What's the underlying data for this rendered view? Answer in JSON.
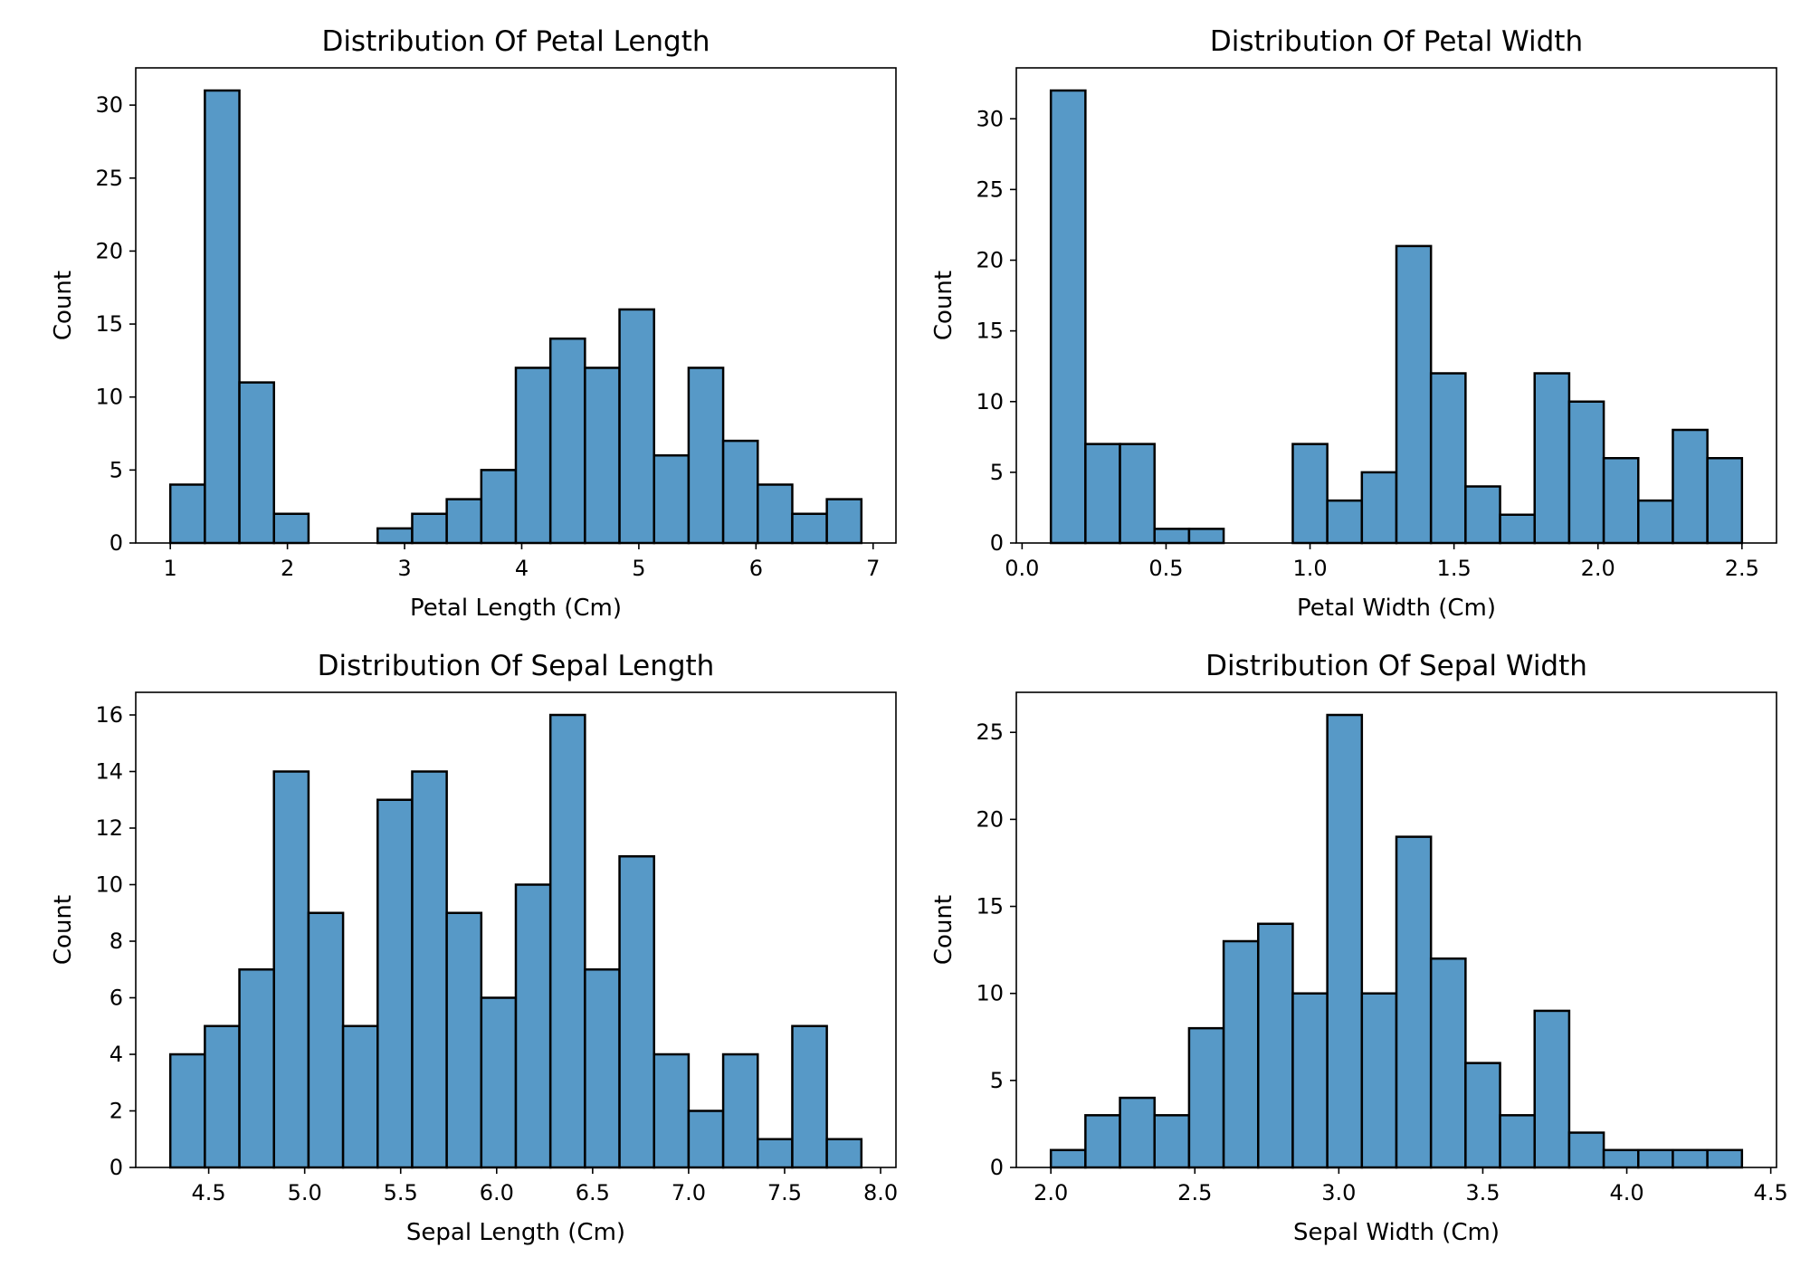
{
  "chart_data": [
    {
      "type": "bar",
      "title": "Distribution Of Petal Length",
      "xlabel": "Petal Length (Cm)",
      "ylabel": "Count",
      "bar_color": "#5799c7",
      "edge_color": "#000000",
      "xlim": [
        0.705,
        7.195
      ],
      "ylim": [
        0,
        32.55
      ],
      "xticks": [
        1,
        2,
        3,
        4,
        5,
        6,
        7
      ],
      "xtick_labels": [
        "1",
        "2",
        "3",
        "4",
        "5",
        "6",
        "7"
      ],
      "yticks": [
        0,
        5,
        10,
        15,
        20,
        25,
        30
      ],
      "ytick_labels": [
        "0",
        "5",
        "10",
        "15",
        "20",
        "25",
        "30"
      ],
      "bins": [
        {
          "x0": 1.0,
          "x1": 1.295,
          "count": 4
        },
        {
          "x0": 1.295,
          "x1": 1.59,
          "count": 31
        },
        {
          "x0": 1.59,
          "x1": 1.885,
          "count": 11
        },
        {
          "x0": 1.885,
          "x1": 2.18,
          "count": 2
        },
        {
          "x0": 2.18,
          "x1": 2.475,
          "count": 0
        },
        {
          "x0": 2.475,
          "x1": 2.77,
          "count": 0
        },
        {
          "x0": 2.77,
          "x1": 3.065,
          "count": 1
        },
        {
          "x0": 3.065,
          "x1": 3.36,
          "count": 2
        },
        {
          "x0": 3.36,
          "x1": 3.655,
          "count": 3
        },
        {
          "x0": 3.655,
          "x1": 3.95,
          "count": 5
        },
        {
          "x0": 3.95,
          "x1": 4.245,
          "count": 12
        },
        {
          "x0": 4.245,
          "x1": 4.54,
          "count": 14
        },
        {
          "x0": 4.54,
          "x1": 4.835,
          "count": 12
        },
        {
          "x0": 4.835,
          "x1": 5.13,
          "count": 16
        },
        {
          "x0": 5.13,
          "x1": 5.425,
          "count": 6
        },
        {
          "x0": 5.425,
          "x1": 5.72,
          "count": 12
        },
        {
          "x0": 5.72,
          "x1": 6.015,
          "count": 7
        },
        {
          "x0": 6.015,
          "x1": 6.31,
          "count": 4
        },
        {
          "x0": 6.31,
          "x1": 6.605,
          "count": 2
        },
        {
          "x0": 6.605,
          "x1": 6.9,
          "count": 3
        }
      ]
    },
    {
      "type": "bar",
      "title": "Distribution Of Petal Width",
      "xlabel": "Petal Width (Cm)",
      "ylabel": "Count",
      "bar_color": "#5799c7",
      "edge_color": "#000000",
      "xlim": [
        -0.02,
        2.62
      ],
      "ylim": [
        0,
        33.6
      ],
      "xticks": [
        0.0,
        0.5,
        1.0,
        1.5,
        2.0,
        2.5
      ],
      "xtick_labels": [
        "0.0",
        "0.5",
        "1.0",
        "1.5",
        "2.0",
        "2.5"
      ],
      "yticks": [
        0,
        5,
        10,
        15,
        20,
        25,
        30
      ],
      "ytick_labels": [
        "0",
        "5",
        "10",
        "15",
        "20",
        "25",
        "30"
      ],
      "bins": [
        {
          "x0": 0.1,
          "x1": 0.22,
          "count": 32
        },
        {
          "x0": 0.22,
          "x1": 0.34,
          "count": 7
        },
        {
          "x0": 0.34,
          "x1": 0.46,
          "count": 7
        },
        {
          "x0": 0.46,
          "x1": 0.58,
          "count": 1
        },
        {
          "x0": 0.58,
          "x1": 0.7,
          "count": 1
        },
        {
          "x0": 0.7,
          "x1": 0.82,
          "count": 0
        },
        {
          "x0": 0.82,
          "x1": 0.94,
          "count": 0
        },
        {
          "x0": 0.94,
          "x1": 1.06,
          "count": 7
        },
        {
          "x0": 1.06,
          "x1": 1.18,
          "count": 3
        },
        {
          "x0": 1.18,
          "x1": 1.3,
          "count": 5
        },
        {
          "x0": 1.3,
          "x1": 1.42,
          "count": 21
        },
        {
          "x0": 1.42,
          "x1": 1.54,
          "count": 12
        },
        {
          "x0": 1.54,
          "x1": 1.66,
          "count": 4
        },
        {
          "x0": 1.66,
          "x1": 1.78,
          "count": 2
        },
        {
          "x0": 1.78,
          "x1": 1.9,
          "count": 12
        },
        {
          "x0": 1.9,
          "x1": 2.02,
          "count": 10
        },
        {
          "x0": 2.02,
          "x1": 2.14,
          "count": 6
        },
        {
          "x0": 2.14,
          "x1": 2.26,
          "count": 3
        },
        {
          "x0": 2.26,
          "x1": 2.38,
          "count": 8
        },
        {
          "x0": 2.38,
          "x1": 2.5,
          "count": 6
        }
      ]
    },
    {
      "type": "bar",
      "title": "Distribution Of Sepal Length",
      "xlabel": "Sepal Length (Cm)",
      "ylabel": "Count",
      "bar_color": "#5799c7",
      "edge_color": "#000000",
      "xlim": [
        4.12,
        8.08
      ],
      "ylim": [
        0,
        16.8
      ],
      "xticks": [
        4.5,
        5.0,
        5.5,
        6.0,
        6.5,
        7.0,
        7.5,
        8.0
      ],
      "xtick_labels": [
        "4.5",
        "5.0",
        "5.5",
        "6.0",
        "6.5",
        "7.0",
        "7.5",
        "8.0"
      ],
      "yticks": [
        0,
        2,
        4,
        6,
        8,
        10,
        12,
        14,
        16
      ],
      "ytick_labels": [
        "0",
        "2",
        "4",
        "6",
        "8",
        "10",
        "12",
        "14",
        "16"
      ],
      "bins": [
        {
          "x0": 4.3,
          "x1": 4.48,
          "count": 4
        },
        {
          "x0": 4.48,
          "x1": 4.66,
          "count": 5
        },
        {
          "x0": 4.66,
          "x1": 4.84,
          "count": 7
        },
        {
          "x0": 4.84,
          "x1": 5.02,
          "count": 14
        },
        {
          "x0": 5.02,
          "x1": 5.2,
          "count": 9
        },
        {
          "x0": 5.2,
          "x1": 5.38,
          "count": 5
        },
        {
          "x0": 5.38,
          "x1": 5.56,
          "count": 13
        },
        {
          "x0": 5.56,
          "x1": 5.74,
          "count": 14
        },
        {
          "x0": 5.74,
          "x1": 5.92,
          "count": 9
        },
        {
          "x0": 5.92,
          "x1": 6.1,
          "count": 6
        },
        {
          "x0": 6.1,
          "x1": 6.28,
          "count": 10
        },
        {
          "x0": 6.28,
          "x1": 6.46,
          "count": 16
        },
        {
          "x0": 6.46,
          "x1": 6.64,
          "count": 7
        },
        {
          "x0": 6.64,
          "x1": 6.82,
          "count": 11
        },
        {
          "x0": 6.82,
          "x1": 7.0,
          "count": 4
        },
        {
          "x0": 7.0,
          "x1": 7.18,
          "count": 2
        },
        {
          "x0": 7.18,
          "x1": 7.36,
          "count": 4
        },
        {
          "x0": 7.36,
          "x1": 7.54,
          "count": 1
        },
        {
          "x0": 7.54,
          "x1": 7.72,
          "count": 5
        },
        {
          "x0": 7.72,
          "x1": 7.9,
          "count": 1
        }
      ]
    },
    {
      "type": "bar",
      "title": "Distribution Of Sepal Width",
      "xlabel": "Sepal Width (Cm)",
      "ylabel": "Count",
      "bar_color": "#5799c7",
      "edge_color": "#000000",
      "xlim": [
        1.88,
        4.52
      ],
      "ylim": [
        0,
        27.3
      ],
      "xticks": [
        2.0,
        2.5,
        3.0,
        3.5,
        4.0,
        4.5
      ],
      "xtick_labels": [
        "2.0",
        "2.5",
        "3.0",
        "3.5",
        "4.0",
        "4.5"
      ],
      "yticks": [
        0,
        5,
        10,
        15,
        20,
        25
      ],
      "ytick_labels": [
        "0",
        "5",
        "10",
        "15",
        "20",
        "25"
      ],
      "bins": [
        {
          "x0": 2.0,
          "x1": 2.12,
          "count": 1
        },
        {
          "x0": 2.12,
          "x1": 2.24,
          "count": 3
        },
        {
          "x0": 2.24,
          "x1": 2.36,
          "count": 4
        },
        {
          "x0": 2.36,
          "x1": 2.48,
          "count": 3
        },
        {
          "x0": 2.48,
          "x1": 2.6,
          "count": 8
        },
        {
          "x0": 2.6,
          "x1": 2.72,
          "count": 13
        },
        {
          "x0": 2.72,
          "x1": 2.84,
          "count": 14
        },
        {
          "x0": 2.84,
          "x1": 2.96,
          "count": 10
        },
        {
          "x0": 2.96,
          "x1": 3.08,
          "count": 26
        },
        {
          "x0": 3.08,
          "x1": 3.2,
          "count": 10
        },
        {
          "x0": 3.2,
          "x1": 3.32,
          "count": 19
        },
        {
          "x0": 3.32,
          "x1": 3.44,
          "count": 12
        },
        {
          "x0": 3.44,
          "x1": 3.56,
          "count": 6
        },
        {
          "x0": 3.56,
          "x1": 3.68,
          "count": 3
        },
        {
          "x0": 3.68,
          "x1": 3.8,
          "count": 9
        },
        {
          "x0": 3.8,
          "x1": 3.92,
          "count": 2
        },
        {
          "x0": 3.92,
          "x1": 4.04,
          "count": 1
        },
        {
          "x0": 4.04,
          "x1": 4.16,
          "count": 1
        },
        {
          "x0": 4.16,
          "x1": 4.28,
          "count": 1
        },
        {
          "x0": 4.28,
          "x1": 4.4,
          "count": 1
        }
      ]
    }
  ]
}
